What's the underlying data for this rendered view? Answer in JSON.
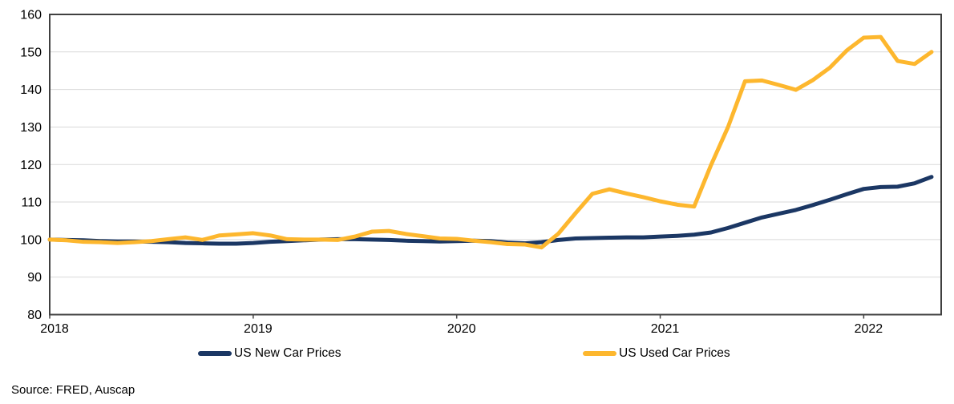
{
  "chart_data": {
    "type": "line",
    "title": "",
    "xlabel": "",
    "ylabel": "",
    "ylim": [
      80,
      160
    ],
    "yticks": [
      80,
      90,
      100,
      110,
      120,
      130,
      140,
      150,
      160
    ],
    "grid": "horizontal",
    "legend_position": "bottom",
    "x": [
      "Jan 2018",
      "Feb 2018",
      "Mar 2018",
      "Apr 2018",
      "May 2018",
      "Jun 2018",
      "Jul 2018",
      "Aug 2018",
      "Sep 2018",
      "Oct 2018",
      "Nov 2018",
      "Dec 2018",
      "Jan 2019",
      "Feb 2019",
      "Mar 2019",
      "Apr 2019",
      "May 2019",
      "Jun 2019",
      "Jul 2019",
      "Aug 2019",
      "Sep 2019",
      "Oct 2019",
      "Nov 2019",
      "Dec 2019",
      "Jan 2020",
      "Feb 2020",
      "Mar 2020",
      "Apr 2020",
      "May 2020",
      "Jun 2020",
      "Jul 2020",
      "Aug 2020",
      "Sep 2020",
      "Oct 2020",
      "Nov 2020",
      "Dec 2020",
      "Jan 2021",
      "Feb 2021",
      "Mar 2021",
      "Apr 2021",
      "May 2021",
      "Jun 2021",
      "Jul 2021",
      "Aug 2021",
      "Sep 2021",
      "Oct 2021",
      "Nov 2021",
      "Dec 2021",
      "Jan 2022",
      "Feb 2022",
      "Mar 2022",
      "Apr 2022",
      "May 2022"
    ],
    "xticks": [
      {
        "label": "2018",
        "month_index": 0
      },
      {
        "label": "2019",
        "month_index": 12
      },
      {
        "label": "2020",
        "month_index": 24
      },
      {
        "label": "2021",
        "month_index": 36
      },
      {
        "label": "2022",
        "month_index": 48
      }
    ],
    "series": [
      {
        "name": "US New Car Prices",
        "color": "#1b3764",
        "values": [
          100.0,
          99.9,
          99.8,
          99.6,
          99.5,
          99.5,
          99.4,
          99.3,
          99.1,
          99.0,
          98.9,
          98.9,
          99.1,
          99.4,
          99.6,
          99.8,
          100.0,
          100.1,
          100.1,
          100.0,
          99.9,
          99.7,
          99.6,
          99.5,
          99.6,
          99.7,
          99.6,
          99.2,
          99.0,
          99.3,
          99.9,
          100.3,
          100.4,
          100.5,
          100.6,
          100.6,
          100.8,
          101.0,
          101.3,
          101.9,
          103.1,
          104.5,
          105.9,
          106.9,
          107.9,
          109.2,
          110.6,
          112.1,
          113.5,
          114.0,
          114.1,
          115.0,
          116.7
        ]
      },
      {
        "name": "US Used Car Prices",
        "color": "#fdb72e",
        "values": [
          100.0,
          99.8,
          99.4,
          99.3,
          99.1,
          99.3,
          99.6,
          100.1,
          100.6,
          99.9,
          101.1,
          101.4,
          101.7,
          101.1,
          100.1,
          100.0,
          100.0,
          99.9,
          100.8,
          102.1,
          102.3,
          101.5,
          100.9,
          100.3,
          100.2,
          99.7,
          99.3,
          98.8,
          98.7,
          97.9,
          101.6,
          107.0,
          112.2,
          113.4,
          112.3,
          111.3,
          110.2,
          109.3,
          108.8,
          119.9,
          130.0,
          142.2,
          142.4,
          141.2,
          139.9,
          142.5,
          145.8,
          150.4,
          153.8,
          154.0,
          147.6,
          146.8,
          150.0
        ]
      }
    ]
  },
  "source": {
    "text": "Source: FRED, Auscap"
  },
  "colors": {
    "axis": "#404040",
    "gridline": "#d9d9d9",
    "background": "#ffffff",
    "text": "#000000"
  }
}
